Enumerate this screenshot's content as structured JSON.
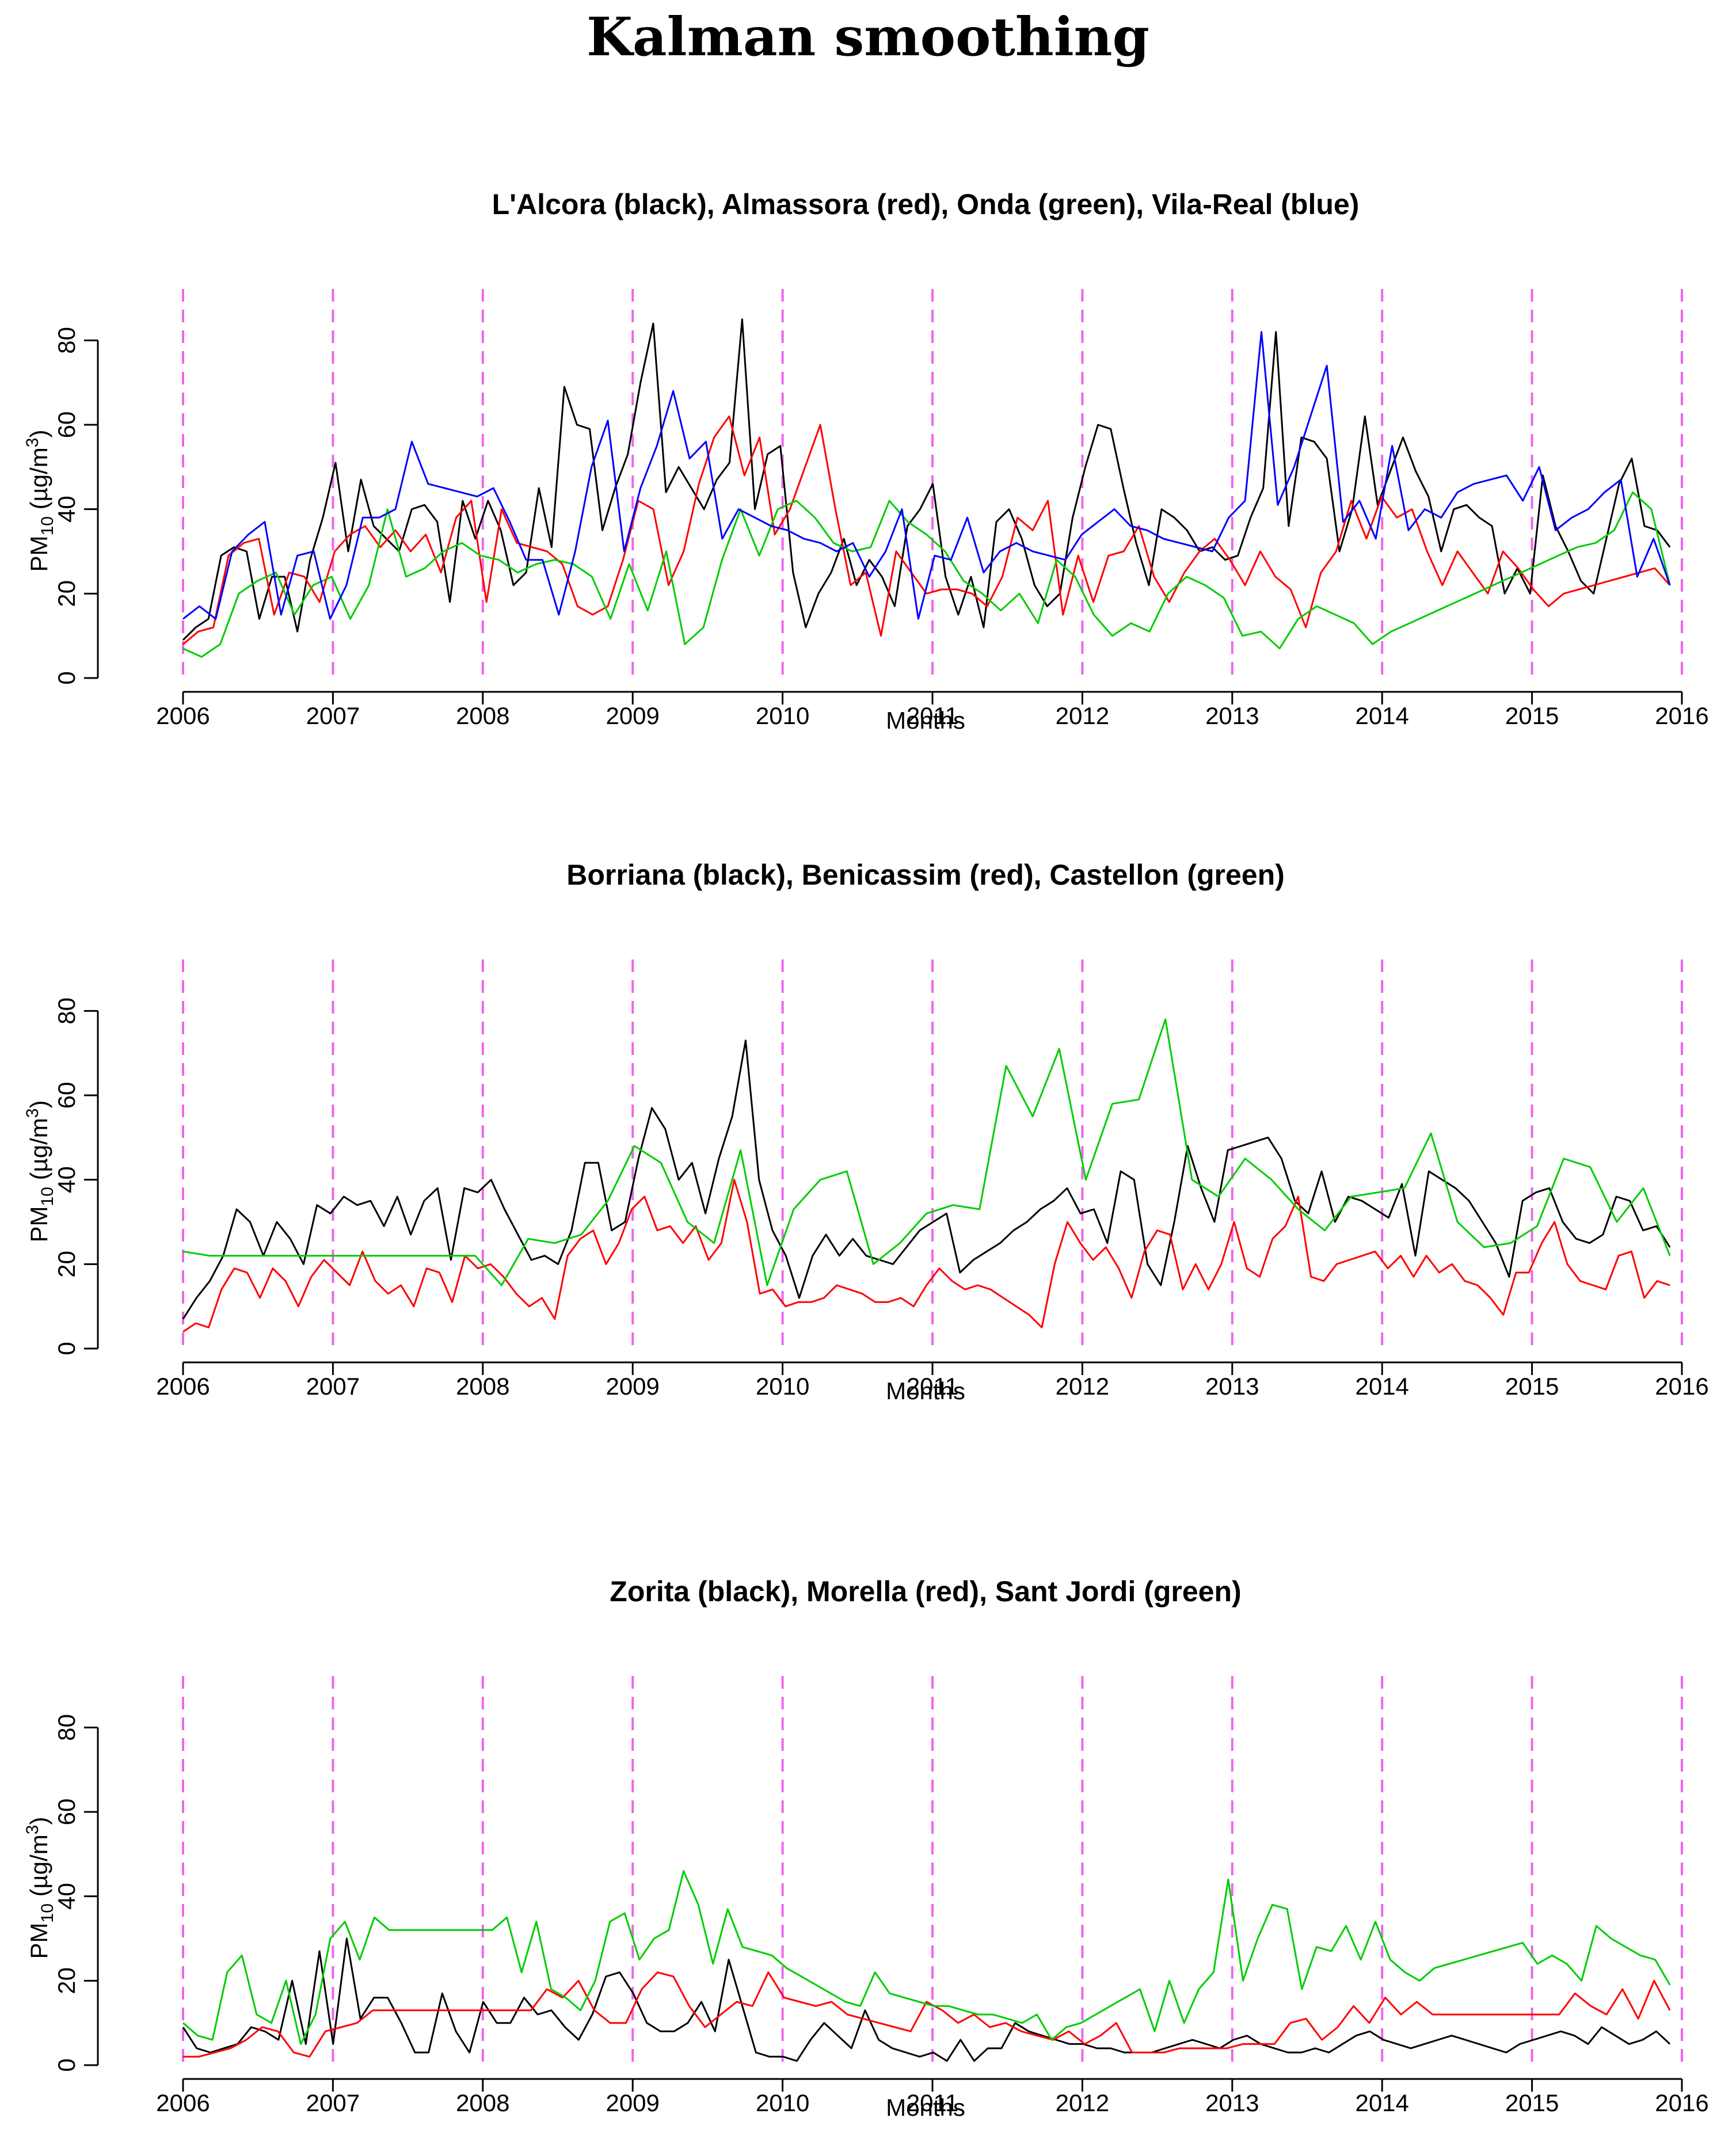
{
  "title": "Kalman smoothing",
  "chart_data": [
    {
      "type": "line",
      "title": "L'Alcora (black), Almassora (red), Onda (green), Vila-Real (blue)",
      "xlabel": "Months",
      "ylabel": "PM10 (µg/m3)",
      "ylabel_parts": {
        "a": "PM",
        "b": "10",
        "c": " (µg/m",
        "d": "3",
        "e": ")"
      },
      "xlim": [
        2006,
        2016
      ],
      "ylim": [
        0,
        90
      ],
      "x_ticks": [
        "2006",
        "2007",
        "2008",
        "2009",
        "2010",
        "2011",
        "2012",
        "2013",
        "2014",
        "2015",
        "2016"
      ],
      "y_ticks": [
        "0",
        "20",
        "40",
        "60",
        "80"
      ],
      "vlines": [
        2006,
        2007,
        2008,
        2009,
        2010,
        2011,
        2012,
        2013,
        2014,
        2015,
        2016
      ],
      "series": [
        {
          "name": "L'Alcora",
          "color": "#000000",
          "values": [
            9,
            12,
            14,
            29,
            31,
            30,
            14,
            24,
            24,
            11,
            28,
            38,
            51,
            30,
            47,
            36,
            33,
            30,
            40,
            41,
            37,
            18,
            42,
            33,
            42,
            35,
            22,
            25,
            45,
            31,
            69,
            60,
            59,
            35,
            45,
            53,
            70,
            84,
            44,
            50,
            45,
            40,
            47,
            51,
            85,
            40,
            53,
            55,
            25,
            12,
            20,
            25,
            33,
            22,
            28,
            24,
            17,
            36,
            40,
            46,
            24,
            15,
            24,
            12,
            37,
            40,
            33,
            22,
            17,
            20,
            38,
            50,
            60,
            59,
            45,
            32,
            22,
            40,
            38,
            35,
            30,
            31,
            28,
            29,
            38,
            45,
            82,
            36,
            57,
            56,
            52,
            30,
            40,
            62,
            41,
            49,
            57,
            49,
            43,
            30,
            40,
            41,
            38,
            36,
            20,
            26,
            20,
            48,
            36,
            30,
            23,
            20,
            33,
            46,
            52,
            36,
            35,
            31
          ]
        },
        {
          "name": "Almassora",
          "color": "#ff0000",
          "values": [
            8,
            11,
            12,
            29,
            32,
            33,
            15,
            25,
            24,
            18,
            30,
            34,
            36,
            31,
            35,
            30,
            34,
            25,
            38,
            42,
            18,
            40,
            32,
            31,
            30,
            27,
            17,
            15,
            17,
            28,
            42,
            40,
            22,
            30,
            46,
            57,
            62,
            48,
            57,
            34,
            40,
            50,
            60,
            40,
            22,
            25,
            10,
            30,
            25,
            20,
            21,
            21,
            20,
            17,
            24,
            38,
            35,
            42,
            15,
            29,
            18,
            29,
            30,
            36,
            24,
            18,
            25,
            30,
            33,
            28,
            22,
            30,
            24,
            21,
            12,
            25,
            30,
            42,
            33,
            43,
            38,
            40,
            30,
            22,
            30,
            25,
            20,
            30,
            26,
            21,
            17,
            20,
            21,
            22,
            23,
            24,
            25,
            26,
            22
          ]
        },
        {
          "name": "Onda",
          "color": "#00cc00",
          "values": [
            7,
            5,
            8,
            20,
            23,
            25,
            15,
            22,
            24,
            14,
            22,
            40,
            24,
            26,
            30,
            32,
            29,
            28,
            25,
            27,
            28,
            27,
            24,
            14,
            27,
            16,
            30,
            8,
            12,
            28,
            40,
            29,
            40,
            42,
            38,
            32,
            30,
            31,
            42,
            37,
            34,
            30,
            23,
            20,
            16,
            20,
            13,
            28,
            24,
            15,
            10,
            13,
            11,
            20,
            24,
            22,
            19,
            10,
            11,
            7,
            14,
            17,
            15,
            13,
            8,
            11,
            13,
            15,
            17,
            19,
            21,
            23,
            25,
            27,
            29,
            31,
            32,
            35,
            44,
            40,
            22
          ]
        },
        {
          "name": "Vila-Real",
          "color": "#0000ff",
          "values": [
            14,
            17,
            14,
            30,
            34,
            37,
            15,
            29,
            30,
            14,
            22,
            38,
            38,
            40,
            56,
            46,
            45,
            44,
            43,
            45,
            37,
            28,
            28,
            15,
            30,
            50,
            61,
            30,
            45,
            55,
            68,
            52,
            56,
            33,
            40,
            38,
            36,
            35,
            33,
            32,
            30,
            32,
            24,
            30,
            40,
            14,
            29,
            28,
            38,
            25,
            30,
            32,
            30,
            29,
            28,
            34,
            37,
            40,
            36,
            35,
            33,
            32,
            31,
            30,
            38,
            42,
            82,
            41,
            50,
            62,
            74,
            37,
            42,
            33,
            55,
            35,
            40,
            38,
            44,
            46,
            47,
            48,
            42,
            50,
            35,
            38,
            40,
            44,
            47,
            24,
            33,
            22
          ]
        }
      ]
    },
    {
      "type": "line",
      "title": "Borriana (black), Benicassim (red), Castellon (green)",
      "xlabel": "Months",
      "ylabel": "PM10 (µg/m3)",
      "ylabel_parts": {
        "a": "PM",
        "b": "10",
        "c": " (µg/m",
        "d": "3",
        "e": ")"
      },
      "xlim": [
        2006,
        2016
      ],
      "ylim": [
        0,
        90
      ],
      "x_ticks": [
        "2006",
        "2007",
        "2008",
        "2009",
        "2010",
        "2011",
        "2012",
        "2013",
        "2014",
        "2015",
        "2016"
      ],
      "y_ticks": [
        "0",
        "20",
        "40",
        "60",
        "80"
      ],
      "vlines": [
        2006,
        2007,
        2008,
        2009,
        2010,
        2011,
        2012,
        2013,
        2014,
        2015,
        2016
      ],
      "series": [
        {
          "name": "Borriana",
          "color": "#000000",
          "values": [
            7,
            12,
            16,
            22,
            33,
            30,
            22,
            30,
            26,
            20,
            34,
            32,
            36,
            34,
            35,
            29,
            36,
            27,
            35,
            38,
            21,
            38,
            37,
            40,
            33,
            27,
            21,
            22,
            20,
            28,
            44,
            44,
            28,
            30,
            45,
            57,
            52,
            40,
            44,
            32,
            45,
            55,
            73,
            40,
            28,
            22,
            12,
            22,
            27,
            22,
            26,
            22,
            21,
            20,
            24,
            28,
            30,
            32,
            18,
            21,
            23,
            25,
            28,
            30,
            33,
            35,
            38,
            32,
            33,
            25,
            42,
            40,
            20,
            15,
            30,
            48,
            38,
            30,
            47,
            48,
            49,
            50,
            45,
            35,
            32,
            42,
            30,
            36,
            35,
            33,
            31,
            39,
            22,
            42,
            40,
            38,
            35,
            30,
            25,
            17,
            35,
            37,
            38,
            30,
            26,
            25,
            27,
            36,
            35,
            28,
            29,
            24
          ]
        },
        {
          "name": "Benicassim",
          "color": "#ff0000",
          "values": [
            4,
            6,
            5,
            14,
            19,
            18,
            12,
            19,
            16,
            10,
            17,
            21,
            18,
            15,
            23,
            16,
            13,
            15,
            10,
            19,
            18,
            11,
            22,
            19,
            20,
            17,
            13,
            10,
            12,
            7,
            22,
            26,
            28,
            20,
            25,
            33,
            36,
            28,
            29,
            25,
            29,
            21,
            25,
            40,
            30,
            13,
            14,
            10,
            11,
            11,
            12,
            15,
            14,
            13,
            11,
            11,
            12,
            10,
            15,
            19,
            16,
            14,
            15,
            14,
            12,
            10,
            8,
            5,
            20,
            30,
            25,
            21,
            24,
            19,
            12,
            23,
            28,
            27,
            14,
            20,
            14,
            20,
            30,
            19,
            17,
            26,
            29,
            36,
            17,
            16,
            20,
            21,
            22,
            23,
            19,
            22,
            17,
            22,
            18,
            20,
            16,
            15,
            12,
            8,
            18,
            18,
            25,
            30,
            20,
            16,
            15,
            14,
            22,
            23,
            12,
            16,
            15
          ]
        },
        {
          "name": "Castellon",
          "color": "#00cc00",
          "values": [
            23,
            22,
            22,
            22,
            22,
            22,
            22,
            22,
            22,
            22,
            22,
            22,
            15,
            26,
            25,
            27,
            35,
            48,
            44,
            30,
            25,
            47,
            15,
            33,
            40,
            42,
            20,
            25,
            32,
            34,
            33,
            67,
            55,
            71,
            40,
            58,
            59,
            78,
            40,
            36,
            45,
            40,
            33,
            28,
            36,
            37,
            38,
            51,
            30,
            24,
            25,
            29,
            45,
            43,
            30,
            38,
            22
          ]
        }
      ]
    },
    {
      "type": "line",
      "title": "Zorita (black), Morella (red), Sant Jordi (green)",
      "xlabel": "Months",
      "ylabel": "PM10 (µg/m3)",
      "ylabel_parts": {
        "a": "PM",
        "b": "10",
        "c": " (µg/m",
        "d": "3",
        "e": ")"
      },
      "xlim": [
        2006,
        2016
      ],
      "ylim": [
        0,
        90
      ],
      "x_ticks": [
        "2006",
        "2007",
        "2008",
        "2009",
        "2010",
        "2011",
        "2012",
        "2013",
        "2014",
        "2015",
        "2016"
      ],
      "y_ticks": [
        "0",
        "20",
        "40",
        "60",
        "80"
      ],
      "vlines": [
        2006,
        2007,
        2008,
        2009,
        2010,
        2011,
        2012,
        2013,
        2014,
        2015,
        2016
      ],
      "series": [
        {
          "name": "Zorita",
          "color": "#000000",
          "values": [
            9,
            4,
            3,
            4,
            5,
            9,
            8,
            6,
            20,
            5,
            27,
            5,
            30,
            11,
            16,
            16,
            10,
            3,
            3,
            17,
            8,
            3,
            15,
            10,
            10,
            16,
            12,
            13,
            9,
            6,
            12,
            21,
            22,
            17,
            10,
            8,
            8,
            10,
            15,
            8,
            25,
            14,
            3,
            2,
            2,
            1,
            6,
            10,
            7,
            4,
            13,
            6,
            4,
            3,
            2,
            3,
            1,
            6,
            1,
            4,
            4,
            10,
            8,
            7,
            6,
            5,
            5,
            4,
            4,
            3,
            3,
            3,
            4,
            5,
            6,
            5,
            4,
            6,
            7,
            5,
            4,
            3,
            3,
            4,
            3,
            5,
            7,
            8,
            6,
            5,
            4,
            5,
            6,
            7,
            6,
            5,
            4,
            3,
            5,
            6,
            7,
            8,
            7,
            5,
            9,
            7,
            5,
            6,
            8,
            5
          ]
        },
        {
          "name": "Morella",
          "color": "#ff0000",
          "values": [
            2,
            2,
            3,
            4,
            6,
            9,
            8,
            3,
            2,
            8,
            9,
            10,
            13,
            13,
            13,
            13,
            13,
            13,
            13,
            13,
            13,
            13,
            13,
            18,
            16,
            20,
            13,
            10,
            10,
            18,
            22,
            21,
            14,
            9,
            12,
            15,
            14,
            22,
            16,
            15,
            14,
            15,
            12,
            11,
            10,
            9,
            8,
            15,
            13,
            10,
            12,
            9,
            10,
            8,
            7,
            6,
            8,
            5,
            7,
            10,
            3,
            3,
            3,
            4,
            4,
            4,
            4,
            5,
            5,
            5,
            10,
            11,
            6,
            9,
            14,
            10,
            16,
            12,
            15,
            12,
            12,
            12,
            12,
            12,
            12,
            12,
            12,
            12,
            17,
            14,
            12,
            18,
            11,
            20,
            13
          ]
        },
        {
          "name": "Sant Jordi",
          "color": "#00cc00",
          "values": [
            10,
            7,
            6,
            22,
            26,
            12,
            10,
            20,
            5,
            12,
            30,
            34,
            25,
            35,
            32,
            32,
            32,
            32,
            32,
            32,
            32,
            32,
            35,
            22,
            34,
            18,
            16,
            13,
            20,
            34,
            36,
            25,
            30,
            32,
            46,
            38,
            24,
            37,
            28,
            27,
            26,
            23,
            21,
            19,
            17,
            15,
            14,
            22,
            17,
            16,
            15,
            14,
            14,
            13,
            12,
            12,
            11,
            10,
            12,
            6,
            9,
            10,
            12,
            14,
            16,
            18,
            8,
            20,
            10,
            18,
            22,
            44,
            20,
            30,
            38,
            37,
            18,
            28,
            27,
            33,
            25,
            34,
            25,
            22,
            20,
            23,
            24,
            25,
            26,
            27,
            28,
            29,
            24,
            26,
            24,
            20,
            33,
            30,
            28,
            26,
            25,
            19
          ]
        }
      ]
    }
  ]
}
